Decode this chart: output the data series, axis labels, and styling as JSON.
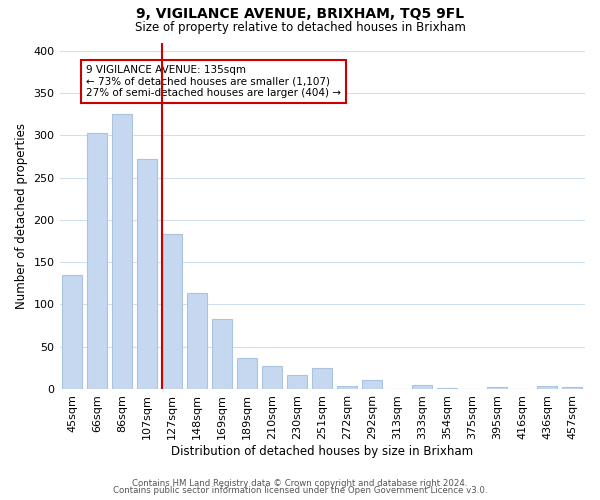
{
  "title": "9, VIGILANCE AVENUE, BRIXHAM, TQ5 9FL",
  "subtitle": "Size of property relative to detached houses in Brixham",
  "xlabel": "Distribution of detached houses by size in Brixham",
  "ylabel": "Number of detached properties",
  "bin_labels": [
    "45sqm",
    "66sqm",
    "86sqm",
    "107sqm",
    "127sqm",
    "148sqm",
    "169sqm",
    "189sqm",
    "210sqm",
    "230sqm",
    "251sqm",
    "272sqm",
    "292sqm",
    "313sqm",
    "333sqm",
    "354sqm",
    "375sqm",
    "395sqm",
    "416sqm",
    "436sqm",
    "457sqm"
  ],
  "bar_values": [
    135,
    303,
    325,
    272,
    183,
    113,
    83,
    37,
    27,
    17,
    25,
    4,
    11,
    0,
    5,
    1,
    0,
    2,
    0,
    3,
    2
  ],
  "bar_color": "#c5d8f0",
  "bar_edge_color": "#aac4e0",
  "vline_x": 4,
  "vline_color": "#cc0000",
  "annotation_text": "9 VIGILANCE AVENUE: 135sqm\n← 73% of detached houses are smaller (1,107)\n27% of semi-detached houses are larger (404) →",
  "annotation_box_edge": "#cc0000",
  "ylim": [
    0,
    410
  ],
  "yticks": [
    0,
    50,
    100,
    150,
    200,
    250,
    300,
    350,
    400
  ],
  "footer_line1": "Contains HM Land Registry data © Crown copyright and database right 2024.",
  "footer_line2": "Contains public sector information licensed under the Open Government Licence v3.0.",
  "figsize": [
    6.0,
    5.0
  ],
  "dpi": 100
}
